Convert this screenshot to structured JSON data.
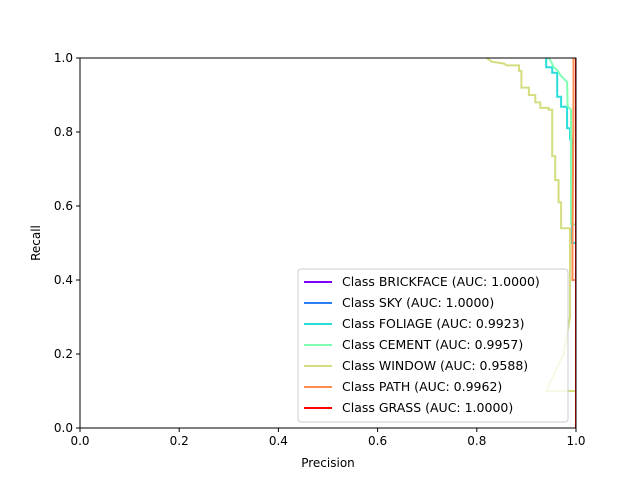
{
  "chart_data": {
    "type": "line",
    "title": "",
    "xlabel": "Precision",
    "ylabel": "Recall",
    "xlim": [
      0,
      1
    ],
    "ylim": [
      0,
      1
    ],
    "xticks": [
      0.0,
      0.2,
      0.4,
      0.6,
      0.8,
      1.0
    ],
    "yticks": [
      0.0,
      0.2,
      0.4,
      0.6,
      0.8,
      1.0
    ],
    "tick_labels_x": [
      "0.0",
      "0.2",
      "0.4",
      "0.6",
      "0.8",
      "1.0"
    ],
    "tick_labels_y": [
      "0.0",
      "0.2",
      "0.4",
      "0.6",
      "0.8",
      "1.0"
    ],
    "grid": false,
    "legend_position": "lower-right",
    "series": [
      {
        "name": "Class BRICKFACE (AUC: 1.0000)",
        "color": "#8000ff",
        "points": [
          [
            1.0,
            1.0
          ],
          [
            1.0,
            0.0
          ]
        ]
      },
      {
        "name": "Class SKY (AUC: 1.0000)",
        "color": "#2c7ef7",
        "points": [
          [
            1.0,
            1.0
          ],
          [
            1.0,
            0.0
          ]
        ]
      },
      {
        "name": "Class FOLIAGE (AUC: 0.9923)",
        "color": "#2adddd",
        "points": [
          [
            0.94,
            1.0
          ],
          [
            0.94,
            0.975
          ],
          [
            0.952,
            0.975
          ],
          [
            0.952,
            0.96
          ],
          [
            0.962,
            0.96
          ],
          [
            0.962,
            0.895
          ],
          [
            0.97,
            0.895
          ],
          [
            0.97,
            0.868
          ],
          [
            0.982,
            0.868
          ],
          [
            0.982,
            0.81
          ],
          [
            0.988,
            0.81
          ],
          [
            0.988,
            0.78
          ],
          [
            0.992,
            0.78
          ],
          [
            0.992,
            0.5
          ],
          [
            1.0,
            0.5
          ],
          [
            1.0,
            0.0
          ]
        ]
      },
      {
        "name": "Class CEMENT (AUC: 0.9957)",
        "color": "#80ffb4",
        "points": [
          [
            0.945,
            1.0
          ],
          [
            0.95,
            0.99
          ],
          [
            0.955,
            0.975
          ],
          [
            0.962,
            0.968
          ],
          [
            0.968,
            0.955
          ],
          [
            0.975,
            0.945
          ],
          [
            0.982,
            0.935
          ],
          [
            0.983,
            0.87
          ],
          [
            0.99,
            0.86
          ],
          [
            0.99,
            0.55
          ],
          [
            1.0,
            0.55
          ],
          [
            1.0,
            0.0
          ]
        ]
      },
      {
        "name": "Class WINDOW (AUC: 0.9588)",
        "color": "#d4dd80",
        "points": [
          [
            0.82,
            1.0
          ],
          [
            0.83,
            0.99
          ],
          [
            0.855,
            0.985
          ],
          [
            0.86,
            0.98
          ],
          [
            0.885,
            0.98
          ],
          [
            0.885,
            0.965
          ],
          [
            0.89,
            0.965
          ],
          [
            0.89,
            0.92
          ],
          [
            0.905,
            0.92
          ],
          [
            0.905,
            0.9
          ],
          [
            0.918,
            0.9
          ],
          [
            0.918,
            0.88
          ],
          [
            0.928,
            0.88
          ],
          [
            0.928,
            0.865
          ],
          [
            0.945,
            0.865
          ],
          [
            0.945,
            0.86
          ],
          [
            0.952,
            0.86
          ],
          [
            0.952,
            0.735
          ],
          [
            0.958,
            0.735
          ],
          [
            0.958,
            0.67
          ],
          [
            0.965,
            0.67
          ],
          [
            0.965,
            0.61
          ],
          [
            0.97,
            0.61
          ],
          [
            0.97,
            0.54
          ],
          [
            0.988,
            0.54
          ],
          [
            0.988,
            0.3
          ],
          [
            0.975,
            0.2
          ],
          [
            0.94,
            0.1
          ],
          [
            1.0,
            0.1
          ],
          [
            1.0,
            0.0
          ]
        ]
      },
      {
        "name": "Class PATH (AUC: 0.9962)",
        "color": "#ff8d4f",
        "points": [
          [
            0.995,
            1.0
          ],
          [
            0.995,
            0.89
          ],
          [
            0.993,
            0.5
          ],
          [
            0.993,
            0.4
          ],
          [
            1.0,
            0.4
          ],
          [
            1.0,
            0.0
          ]
        ]
      },
      {
        "name": "Class GRASS (AUC: 1.0000)",
        "color": "#ff0000",
        "points": [
          [
            1.0,
            1.0
          ],
          [
            1.0,
            0.0
          ]
        ]
      }
    ]
  }
}
